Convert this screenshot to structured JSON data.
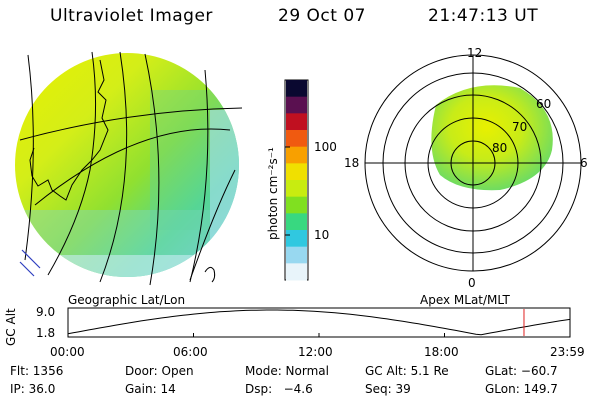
{
  "header": {
    "title": "Ultraviolet Imager",
    "date": "29 Oct 07",
    "time": "21:47:13 UT"
  },
  "left_panel": {
    "caption": "Geographic Lat/Lon"
  },
  "right_panel": {
    "caption": "Apex MLat/MLT",
    "mlt_labels": {
      "top": "12",
      "left": "18",
      "right": "6",
      "bottom": "0"
    },
    "lat_labels": [
      "60",
      "70",
      "80"
    ]
  },
  "colorbar": {
    "unit_label": "photon cm⁻²s⁻¹",
    "tick_labels": [
      "100",
      "10"
    ],
    "colors": [
      "#0a0830",
      "#5a1050",
      "#c01020",
      "#f05a10",
      "#f8a000",
      "#f0e000",
      "#c8ec10",
      "#80e020",
      "#38d880",
      "#30c8e0",
      "#98d8f0",
      "#e8f4fa"
    ]
  },
  "altitude_plot": {
    "ylabel": "GC Alt",
    "y_ticks": [
      "9.0",
      "1.8"
    ],
    "x_ticks": [
      "00:00",
      "06:00",
      "12:00",
      "18:00",
      "23:59"
    ],
    "current_time_hours": 21.8,
    "marker_color": "#e02020"
  },
  "stats": {
    "flt": "Flt: 1356",
    "door": "Door: Open",
    "mode": "Mode: Normal",
    "gc_alt": "GC Alt: 5.1 Re",
    "glat": "GLat: −60.7",
    "ip": "IP: 36.0",
    "gain": "Gain: 14",
    "dsp": "Dsp:   −4.6",
    "seq": "Seq: 39",
    "glon": "GLon: 149.7"
  }
}
